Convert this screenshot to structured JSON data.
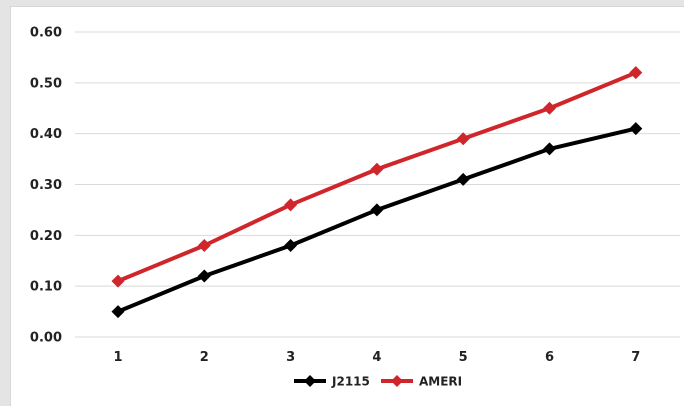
{
  "chart_data": {
    "type": "line",
    "categories": [
      "1",
      "2",
      "3",
      "4",
      "5",
      "6",
      "7"
    ],
    "series": [
      {
        "name": "J2115",
        "values": [
          0.05,
          0.12,
          0.18,
          0.25,
          0.31,
          0.37,
          0.41
        ],
        "color": "#000000"
      },
      {
        "name": "AMERI",
        "values": [
          0.11,
          0.18,
          0.26,
          0.33,
          0.39,
          0.45,
          0.52
        ],
        "color": "#d0262b"
      }
    ],
    "y_ticks": [
      "0.00",
      "0.10",
      "0.20",
      "0.30",
      "0.40",
      "0.50",
      "0.60"
    ],
    "ylim": [
      0,
      0.6
    ],
    "grid": true,
    "legend_position": "bottom-center",
    "marker": "diamond"
  }
}
